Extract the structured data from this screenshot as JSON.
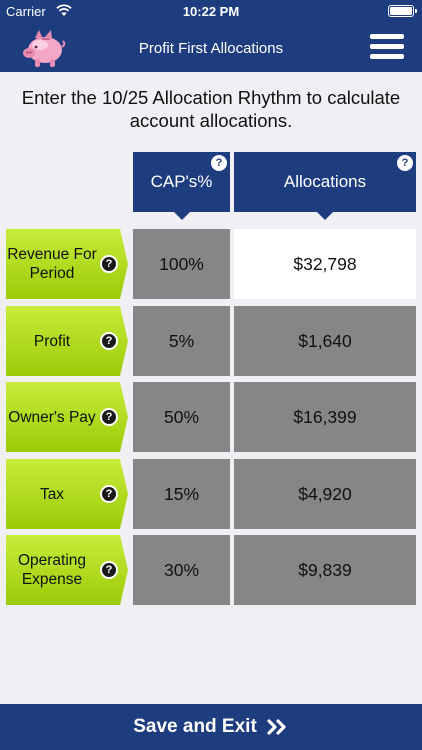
{
  "status": {
    "carrier": "Carrier",
    "time": "10:22 PM"
  },
  "nav": {
    "title": "Profit First Allocations",
    "logo_icon": "piggy-bank-icon",
    "menu_icon": "hamburger-menu-icon"
  },
  "instructions": "Enter the 10/25 Allocation Rhythm to calculate account allocations.",
  "headers": {
    "percent": "CAP's%",
    "allocations": "Allocations",
    "help": "?"
  },
  "rows": [
    {
      "label": "Revenue For Period",
      "percent": "100%",
      "amount": "$32,798"
    },
    {
      "label": "Profit",
      "percent": "5%",
      "amount": "$1,640"
    },
    {
      "label": "Owner's Pay",
      "percent": "50%",
      "amount": "$16,399"
    },
    {
      "label": "Tax",
      "percent": "15%",
      "amount": "$4,920"
    },
    {
      "label": "Operating Expense",
      "percent": "30%",
      "amount": "$9,839"
    }
  ],
  "help_symbol": "?",
  "footer": {
    "label": "Save and Exit",
    "icon": "double-chevron-right-icon"
  },
  "colors": {
    "navy": "#1e3d7f",
    "green": "#b5de1f",
    "gray_cell": "#868686"
  }
}
